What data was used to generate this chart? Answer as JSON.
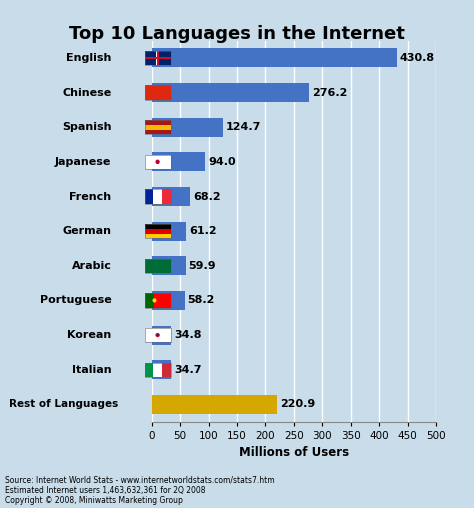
{
  "title": "Top 10 Languages in the Internet",
  "categories": [
    "Rest of Languages",
    "Italian",
    "Korean",
    "Portuguese",
    "Arabic",
    "German",
    "French",
    "Japanese",
    "Spanish",
    "Chinese",
    "English"
  ],
  "values": [
    220.9,
    34.7,
    34.8,
    58.2,
    59.9,
    61.2,
    68.2,
    94.0,
    124.7,
    276.2,
    430.8
  ],
  "bar_colors": [
    "#D4A800",
    "#4472C4",
    "#4472C4",
    "#4472C4",
    "#4472C4",
    "#4472C4",
    "#4472C4",
    "#4472C4",
    "#4472C4",
    "#4472C4",
    "#4472C4"
  ],
  "xlabel": "Millions of Users",
  "xlim": [
    0,
    500
  ],
  "xticks": [
    0,
    50,
    100,
    150,
    200,
    250,
    300,
    350,
    400,
    450,
    500
  ],
  "background_color": "#C8DCEA",
  "plot_bg_color": "#C8DCEA",
  "grid_color": "#FFFFFF",
  "source_line1": "Source: Internet World Stats - www.internetworldstats.com/stats7.htm",
  "source_line2": "Estimated Internet users 1,463,632,361 for 2Q 2008",
  "source_line3": "Copyright © 2008, Miniwatts Marketing Group",
  "title_fontsize": 13,
  "label_fontsize": 8.5,
  "value_fontsize": 8,
  "bar_height": 0.55
}
